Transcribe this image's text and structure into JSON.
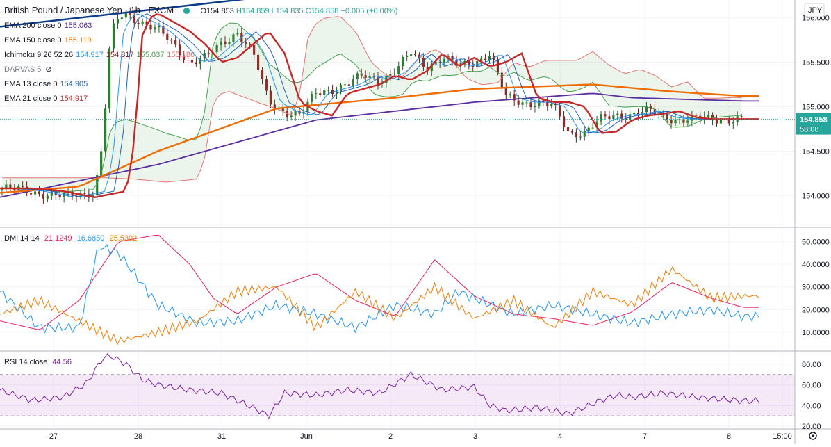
{
  "header": {
    "symbol": "British Pound / Japanese Yen · 1h · FXCM",
    "ohlc": {
      "open": "O154.853",
      "high": "H154.859",
      "low": "L154.835",
      "close": "C154.858",
      "change": "+0.005 (+0.00%)"
    }
  },
  "currency_badge": "JPY",
  "indicators": [
    {
      "label": "EMA 200 close 0",
      "values": [
        "155.063"
      ],
      "colors": [
        "#5b2c9d"
      ]
    },
    {
      "label": "EMA 150 close 0",
      "values": [
        "155.119"
      ],
      "colors": [
        "#ef6c00"
      ]
    },
    {
      "label": "Ichimoku 9 26 52 26",
      "values": [
        "154.917",
        "154.817",
        "155.037",
        "155.186"
      ],
      "colors": [
        "#2196f3",
        "#801922",
        "#43a047",
        "#e57373"
      ]
    },
    {
      "label": "DARVAS 5",
      "values": [],
      "colors": []
    },
    {
      "label": "EMA 13 close 0",
      "values": [
        "154.905"
      ],
      "colors": [
        "#1e63b8"
      ]
    },
    {
      "label": "EMA 21 close 0",
      "values": [
        "154.917"
      ],
      "colors": [
        "#c62828"
      ]
    }
  ],
  "price_badge": {
    "price": "154.858",
    "countdown": "58:08"
  },
  "price_axis": [
    "156.000",
    "155.500",
    "155.000",
    "154.500",
    "154.000"
  ],
  "dmi_legend": {
    "label": "DMI 14 14",
    "plus": "21.1249",
    "minus": "16.6850",
    "adx": "25.5302"
  },
  "dmi_axis": [
    "50.0000",
    "40.0000",
    "30.0000",
    "20.0000",
    "10.0000"
  ],
  "rsi_legend": {
    "label": "RSI 14 close",
    "value": "44.56"
  },
  "rsi_axis": [
    "80.00",
    "60.00",
    "40.00",
    "20.00"
  ],
  "time_axis": [
    "27",
    "28",
    "31",
    "Jun",
    "2",
    "3",
    "4",
    "7",
    "8",
    "15:00"
  ],
  "colors": {
    "up": "#26a69a",
    "down": "#ef5350",
    "ema200": "#5b2c9d",
    "ema150": "#ef6c00",
    "ema13": "#1e63b8",
    "ema21": "#c62828",
    "tenkan": "#2196f3",
    "kijun": "#801922",
    "span_a": "#43a047",
    "span_b": "#e57373",
    "dmi_plus": "#e91e63",
    "dmi_minus": "#2196f3",
    "adx": "#f57c00",
    "rsi": "#7b1fa2",
    "trend": "#0d3b8c"
  },
  "chart_data": [
    {
      "type": "candlestick",
      "ylim": [
        153.65,
        156.2
      ],
      "x": [
        "27",
        "28",
        "31",
        "Jun",
        "2",
        "3",
        "4",
        "7",
        "8"
      ],
      "x_range_hours": [
        0,
        192
      ],
      "close_series": {
        "t": [
          0,
          8,
          16,
          24,
          26,
          28,
          30,
          32,
          36,
          40,
          44,
          48,
          52,
          56,
          60,
          64,
          68,
          72,
          76,
          80,
          84,
          88,
          92,
          96,
          100,
          104,
          108,
          112,
          116,
          120,
          124,
          128,
          132,
          136,
          140,
          144,
          148,
          152,
          156,
          160,
          164,
          168,
          172,
          176,
          180,
          184,
          188
        ],
        "close": [
          154.08,
          154.05,
          153.98,
          154.05,
          154.6,
          155.8,
          156.0,
          156.05,
          155.95,
          155.85,
          155.7,
          155.5,
          155.55,
          155.7,
          155.85,
          155.6,
          155.05,
          154.95,
          154.9,
          155.15,
          155.2,
          155.25,
          155.35,
          155.3,
          155.4,
          155.6,
          155.45,
          155.55,
          155.45,
          155.5,
          155.6,
          155.1,
          155.05,
          155.05,
          155.0,
          154.7,
          154.72,
          154.85,
          154.9,
          154.92,
          154.95,
          154.88,
          154.86,
          154.86,
          154.86,
          154.86,
          154.86
        ]
      },
      "last_price": 154.858,
      "ema200": {
        "t": [
          0,
          40,
          80,
          120,
          150,
          160,
          188
        ],
        "v": [
          153.98,
          154.35,
          154.85,
          155.05,
          155.15,
          155.1,
          155.063
        ]
      },
      "ema150": {
        "t": [
          0,
          20,
          40,
          70,
          100,
          120,
          150,
          170,
          188
        ],
        "v": [
          154.03,
          154.1,
          154.5,
          154.98,
          155.1,
          155.2,
          155.25,
          155.17,
          155.119
        ]
      },
      "trendline": {
        "t": [
          0,
          100
        ],
        "v": [
          155.9,
          156.4
        ]
      }
    },
    {
      "type": "line",
      "title": "DMI 14 14",
      "ylim": [
        2,
        56
      ],
      "series": [
        {
          "name": "+DI",
          "t": [
            0,
            10,
            20,
            30,
            40,
            48,
            54,
            60,
            70,
            80,
            90,
            100,
            110,
            120,
            130,
            140,
            150,
            160,
            170,
            180,
            188
          ],
          "values": [
            15,
            11,
            24,
            50,
            53,
            40,
            25,
            18,
            30,
            36,
            24,
            17,
            42,
            26,
            18,
            16,
            13,
            19,
            32,
            25,
            21
          ]
        },
        {
          "name": "-DI",
          "t": [
            0,
            10,
            20,
            25,
            30,
            40,
            50,
            60,
            70,
            80,
            90,
            100,
            110,
            116,
            120,
            130,
            140,
            150,
            160,
            170,
            180,
            188
          ],
          "values": [
            28,
            12,
            12,
            48,
            45,
            22,
            14,
            15,
            22,
            18,
            12,
            22,
            18,
            28,
            25,
            18,
            22,
            18,
            14,
            18,
            20,
            17
          ]
        },
        {
          "name": "ADX",
          "t": [
            0,
            10,
            20,
            30,
            40,
            50,
            60,
            70,
            80,
            90,
            100,
            110,
            120,
            130,
            140,
            150,
            160,
            170,
            180,
            188
          ],
          "values": [
            18,
            24,
            15,
            6,
            10,
            15,
            28,
            30,
            12,
            28,
            16,
            30,
            16,
            24,
            12,
            28,
            22,
            38,
            25,
            26
          ]
        }
      ]
    },
    {
      "type": "line",
      "title": "RSI 14 close",
      "ylim": [
        18,
        92
      ],
      "band": [
        30,
        70
      ],
      "series": [
        {
          "name": "RSI",
          "t": [
            0,
            8,
            16,
            22,
            26,
            28,
            32,
            36,
            40,
            48,
            56,
            64,
            68,
            72,
            80,
            88,
            96,
            104,
            112,
            120,
            124,
            128,
            136,
            144,
            152,
            156,
            160,
            168,
            176,
            188
          ],
          "values": [
            55,
            45,
            48,
            62,
            86,
            88,
            80,
            65,
            60,
            55,
            52,
            38,
            30,
            52,
            50,
            55,
            52,
            70,
            55,
            58,
            40,
            35,
            38,
            32,
            45,
            50,
            48,
            52,
            48,
            44.56
          ]
        }
      ]
    }
  ]
}
